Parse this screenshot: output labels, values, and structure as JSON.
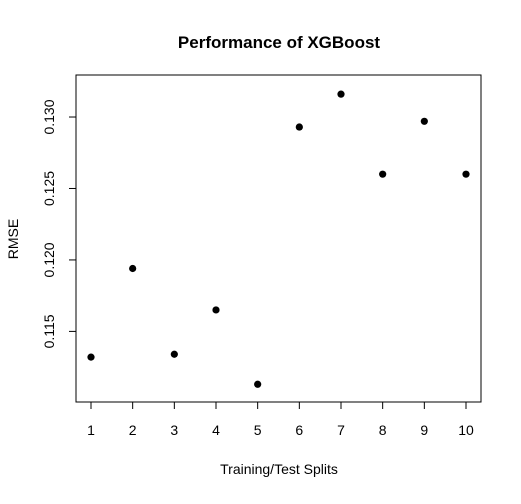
{
  "chart_data": {
    "type": "scatter",
    "title": "Performance of XGBoost",
    "xlabel": "Training/Test Splits",
    "ylabel": "RMSE",
    "x": [
      1,
      2,
      3,
      4,
      5,
      6,
      7,
      8,
      9,
      10
    ],
    "y": [
      0.1132,
      0.1194,
      0.1134,
      0.1165,
      0.1113,
      0.1293,
      0.1316,
      0.126,
      0.1297,
      0.126
    ],
    "xlim": [
      0.64,
      10.36
    ],
    "ylim": [
      0.11006,
      0.13294
    ],
    "xticks": [
      1,
      2,
      3,
      4,
      5,
      6,
      7,
      8,
      9,
      10
    ],
    "yticks": [
      0.115,
      0.12,
      0.125,
      0.13
    ],
    "ytick_labels": [
      "0.115",
      "0.120",
      "0.125",
      "0.130"
    ],
    "grid": false,
    "legend": "none",
    "marker_color": "#000000"
  }
}
